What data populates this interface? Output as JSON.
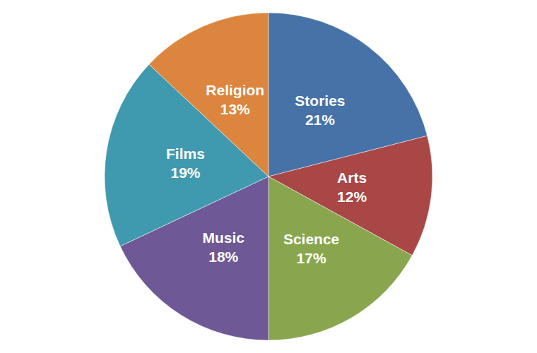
{
  "chart_data": {
    "type": "pie",
    "categories": [
      "Stories",
      "Arts",
      "Science",
      "Music",
      "Films",
      "Religion"
    ],
    "values": [
      21,
      12,
      17,
      18,
      19,
      13
    ],
    "value_labels": [
      "21%",
      "12%",
      "17%",
      "18%",
      "19%",
      "13%"
    ],
    "colors": [
      "#4672a8",
      "#a94646",
      "#89a64e",
      "#6e5895",
      "#3f9ab0",
      "#dc853e"
    ],
    "data_labels": true
  }
}
